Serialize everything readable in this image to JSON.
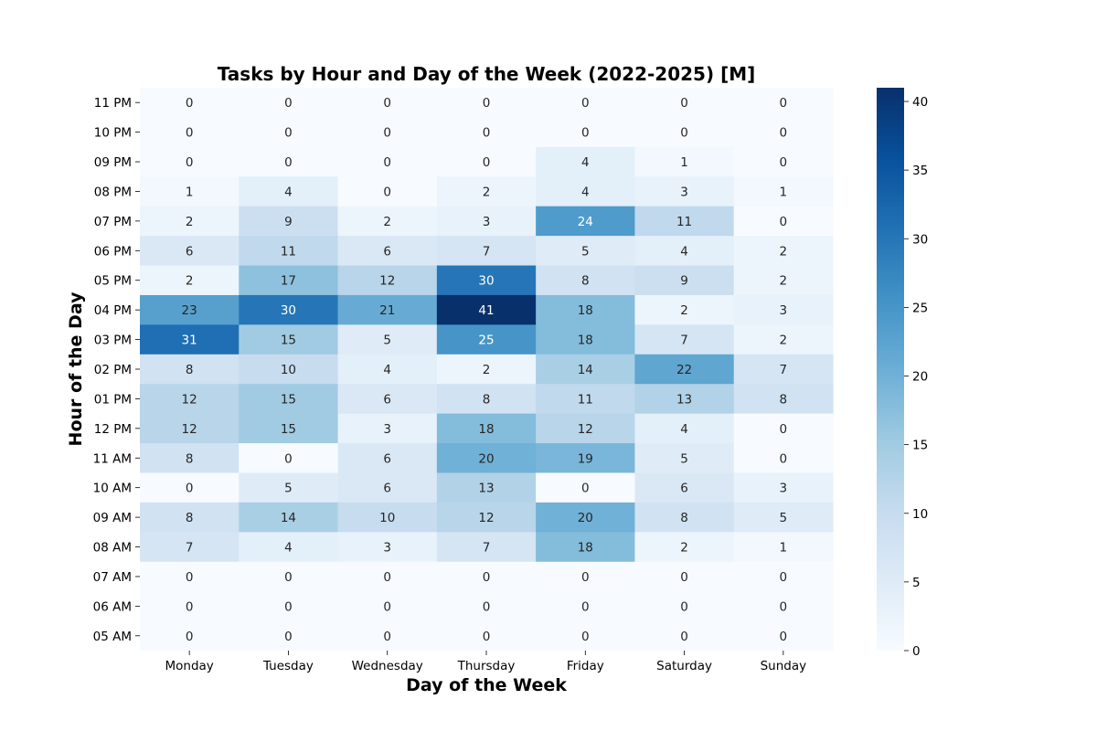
{
  "chart_data": {
    "type": "heatmap",
    "title": "Tasks by Hour and Day of the Week (2022-2025) [M]",
    "xlabel": "Day of the Week",
    "ylabel": "Hour of the Day",
    "x_categories": [
      "Monday",
      "Tuesday",
      "Wednesday",
      "Thursday",
      "Friday",
      "Saturday",
      "Sunday"
    ],
    "y_categories": [
      "11 PM",
      "10 PM",
      "09 PM",
      "08 PM",
      "07 PM",
      "06 PM",
      "05 PM",
      "04 PM",
      "03 PM",
      "02 PM",
      "01 PM",
      "12 PM",
      "11 AM",
      "10 AM",
      "09 AM",
      "08 AM",
      "07 AM",
      "06 AM",
      "05 AM"
    ],
    "values": [
      [
        0,
        0,
        0,
        0,
        0,
        0,
        0
      ],
      [
        0,
        0,
        0,
        0,
        0,
        0,
        0
      ],
      [
        0,
        0,
        0,
        0,
        4,
        1,
        0
      ],
      [
        1,
        4,
        0,
        2,
        4,
        3,
        1
      ],
      [
        2,
        9,
        2,
        3,
        24,
        11,
        0
      ],
      [
        6,
        11,
        6,
        7,
        5,
        4,
        2
      ],
      [
        2,
        17,
        12,
        30,
        8,
        9,
        2
      ],
      [
        23,
        30,
        21,
        41,
        18,
        2,
        3
      ],
      [
        31,
        15,
        5,
        25,
        18,
        7,
        2
      ],
      [
        8,
        10,
        4,
        2,
        14,
        22,
        7
      ],
      [
        12,
        15,
        6,
        8,
        11,
        13,
        8
      ],
      [
        12,
        15,
        3,
        18,
        12,
        4,
        0
      ],
      [
        8,
        0,
        6,
        20,
        19,
        5,
        0
      ],
      [
        0,
        5,
        6,
        13,
        0,
        6,
        3
      ],
      [
        8,
        14,
        10,
        12,
        20,
        8,
        5
      ],
      [
        7,
        4,
        3,
        7,
        18,
        2,
        1
      ],
      [
        0,
        0,
        0,
        0,
        0,
        0,
        0
      ],
      [
        0,
        0,
        0,
        0,
        0,
        0,
        0
      ],
      [
        0,
        0,
        0,
        0,
        0,
        0,
        0
      ]
    ],
    "colorbar": {
      "min": 0,
      "max": 41,
      "ticks": [
        "0",
        "5",
        "10",
        "15",
        "20",
        "25",
        "30",
        "35",
        "40"
      ]
    },
    "colormap": "Blues",
    "colormap_stops": [
      "#f7fbff",
      "#deebf7",
      "#c6dbef",
      "#9ecae1",
      "#6baed6",
      "#4292c6",
      "#2171b5",
      "#08519c",
      "#08306b"
    ]
  }
}
